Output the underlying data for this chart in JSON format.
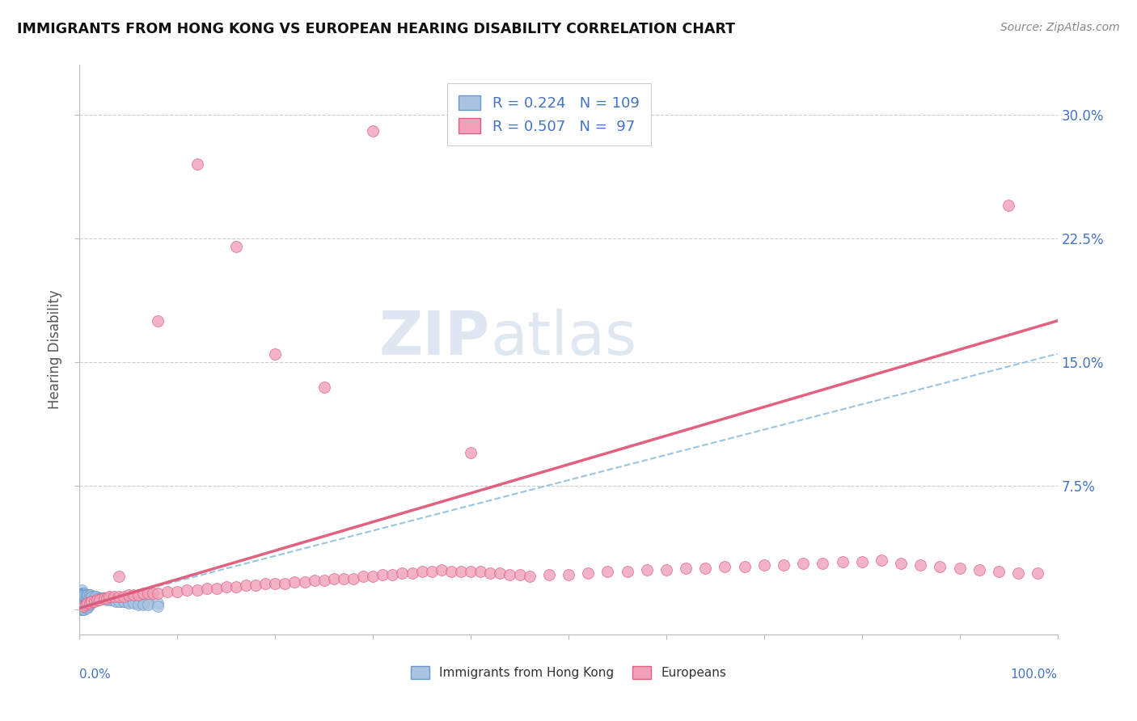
{
  "title": "IMMIGRANTS FROM HONG KONG VS EUROPEAN HEARING DISABILITY CORRELATION CHART",
  "source": "Source: ZipAtlas.com",
  "ylabel": "Hearing Disability",
  "y_ticks": [
    0.0,
    0.075,
    0.15,
    0.225,
    0.3
  ],
  "y_tick_labels": [
    "",
    "7.5%",
    "15.0%",
    "22.5%",
    "30.0%"
  ],
  "x_lim": [
    0.0,
    1.0
  ],
  "y_lim": [
    -0.015,
    0.33
  ],
  "blue_R": 0.224,
  "blue_N": 109,
  "pink_R": 0.507,
  "pink_N": 97,
  "blue_color": "#aac4e0",
  "pink_color": "#f0a0b8",
  "blue_edge": "#6899cc",
  "pink_edge": "#e06080",
  "blue_scatter_x": [
    0.001,
    0.001,
    0.001,
    0.001,
    0.001,
    0.001,
    0.001,
    0.001,
    0.001,
    0.001,
    0.002,
    0.002,
    0.002,
    0.002,
    0.002,
    0.002,
    0.002,
    0.002,
    0.002,
    0.003,
    0.003,
    0.003,
    0.003,
    0.003,
    0.003,
    0.003,
    0.004,
    0.004,
    0.004,
    0.004,
    0.004,
    0.004,
    0.005,
    0.005,
    0.005,
    0.005,
    0.005,
    0.006,
    0.006,
    0.006,
    0.006,
    0.007,
    0.007,
    0.007,
    0.008,
    0.008,
    0.008,
    0.009,
    0.009,
    0.01,
    0.01,
    0.011,
    0.012,
    0.013,
    0.014,
    0.015,
    0.016,
    0.018,
    0.02,
    0.022,
    0.025,
    0.028,
    0.03,
    0.032,
    0.035,
    0.038,
    0.04,
    0.042,
    0.045,
    0.048,
    0.05,
    0.055,
    0.06,
    0.065,
    0.07,
    0.08,
    0.002,
    0.003,
    0.004,
    0.005,
    0.006,
    0.007,
    0.008,
    0.009,
    0.01,
    0.011,
    0.012,
    0.013,
    0.015,
    0.017,
    0.019,
    0.021,
    0.023,
    0.025,
    0.028,
    0.031,
    0.034,
    0.037,
    0.04,
    0.045,
    0.05,
    0.055,
    0.06,
    0.065,
    0.07,
    0.08
  ],
  "blue_scatter_y": [
    0.0,
    0.001,
    0.002,
    0.003,
    0.004,
    0.005,
    0.006,
    0.007,
    0.008,
    0.01,
    0.0,
    0.001,
    0.002,
    0.003,
    0.005,
    0.006,
    0.008,
    0.01,
    0.012,
    0.0,
    0.001,
    0.002,
    0.004,
    0.006,
    0.008,
    0.01,
    0.0,
    0.001,
    0.003,
    0.005,
    0.007,
    0.01,
    0.0,
    0.002,
    0.004,
    0.007,
    0.01,
    0.001,
    0.003,
    0.006,
    0.009,
    0.002,
    0.005,
    0.008,
    0.001,
    0.004,
    0.008,
    0.002,
    0.006,
    0.003,
    0.007,
    0.004,
    0.005,
    0.005,
    0.006,
    0.006,
    0.007,
    0.007,
    0.007,
    0.007,
    0.007,
    0.007,
    0.007,
    0.007,
    0.006,
    0.006,
    0.006,
    0.005,
    0.005,
    0.005,
    0.005,
    0.005,
    0.004,
    0.004,
    0.004,
    0.004,
    0.009,
    0.009,
    0.009,
    0.009,
    0.009,
    0.009,
    0.009,
    0.009,
    0.009,
    0.009,
    0.008,
    0.008,
    0.008,
    0.008,
    0.007,
    0.007,
    0.007,
    0.007,
    0.006,
    0.006,
    0.006,
    0.005,
    0.005,
    0.005,
    0.004,
    0.004,
    0.003,
    0.003,
    0.003,
    0.002
  ],
  "pink_scatter_x": [
    0.004,
    0.006,
    0.008,
    0.01,
    0.012,
    0.015,
    0.018,
    0.02,
    0.025,
    0.028,
    0.03,
    0.035,
    0.04,
    0.045,
    0.05,
    0.055,
    0.06,
    0.065,
    0.07,
    0.075,
    0.08,
    0.09,
    0.1,
    0.11,
    0.12,
    0.13,
    0.14,
    0.15,
    0.16,
    0.17,
    0.18,
    0.19,
    0.2,
    0.21,
    0.22,
    0.23,
    0.24,
    0.25,
    0.26,
    0.27,
    0.28,
    0.29,
    0.3,
    0.31,
    0.32,
    0.33,
    0.34,
    0.35,
    0.36,
    0.37,
    0.38,
    0.39,
    0.4,
    0.41,
    0.42,
    0.43,
    0.44,
    0.45,
    0.46,
    0.48,
    0.5,
    0.52,
    0.54,
    0.56,
    0.58,
    0.6,
    0.62,
    0.64,
    0.66,
    0.68,
    0.7,
    0.72,
    0.74,
    0.76,
    0.78,
    0.8,
    0.82,
    0.84,
    0.86,
    0.88,
    0.9,
    0.92,
    0.94,
    0.96,
    0.98,
    0.04,
    0.08,
    0.12,
    0.16,
    0.2,
    0.25,
    0.3,
    0.4,
    0.95
  ],
  "pink_scatter_y": [
    0.002,
    0.003,
    0.004,
    0.004,
    0.005,
    0.005,
    0.006,
    0.006,
    0.007,
    0.007,
    0.008,
    0.008,
    0.008,
    0.008,
    0.009,
    0.009,
    0.009,
    0.01,
    0.01,
    0.01,
    0.01,
    0.011,
    0.011,
    0.012,
    0.012,
    0.013,
    0.013,
    0.014,
    0.014,
    0.015,
    0.015,
    0.016,
    0.016,
    0.016,
    0.017,
    0.017,
    0.018,
    0.018,
    0.019,
    0.019,
    0.019,
    0.02,
    0.02,
    0.021,
    0.021,
    0.022,
    0.022,
    0.023,
    0.023,
    0.024,
    0.023,
    0.023,
    0.023,
    0.023,
    0.022,
    0.022,
    0.021,
    0.021,
    0.02,
    0.021,
    0.021,
    0.022,
    0.023,
    0.023,
    0.024,
    0.024,
    0.025,
    0.025,
    0.026,
    0.026,
    0.027,
    0.027,
    0.028,
    0.028,
    0.029,
    0.029,
    0.03,
    0.028,
    0.027,
    0.026,
    0.025,
    0.024,
    0.023,
    0.022,
    0.022,
    0.02,
    0.175,
    0.27,
    0.22,
    0.155,
    0.135,
    0.29,
    0.095,
    0.245
  ],
  "watermark_zip": "ZIP",
  "watermark_atlas": "atlas",
  "blue_trend_x0": 0.0,
  "blue_trend_y0": 0.002,
  "blue_trend_x1": 1.0,
  "blue_trend_y1": 0.155,
  "pink_trend_x0": 0.0,
  "pink_trend_y0": 0.001,
  "pink_trend_x1": 1.0,
  "pink_trend_y1": 0.175
}
